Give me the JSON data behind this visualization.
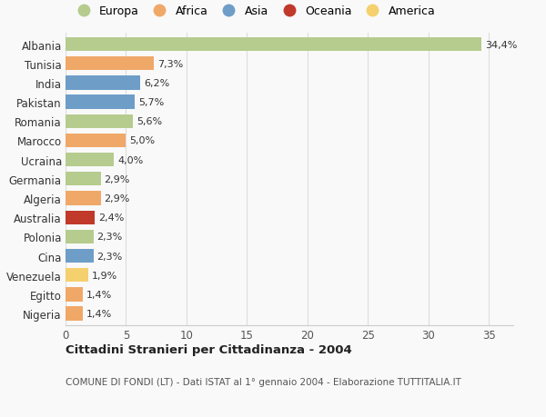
{
  "countries": [
    "Albania",
    "Tunisia",
    "India",
    "Pakistan",
    "Romania",
    "Marocco",
    "Ucraina",
    "Germania",
    "Algeria",
    "Australia",
    "Polonia",
    "Cina",
    "Venezuela",
    "Egitto",
    "Nigeria"
  ],
  "values": [
    34.4,
    7.3,
    6.2,
    5.7,
    5.6,
    5.0,
    4.0,
    2.9,
    2.9,
    2.4,
    2.3,
    2.3,
    1.9,
    1.4,
    1.4
  ],
  "labels": [
    "34,4%",
    "7,3%",
    "6,2%",
    "5,7%",
    "5,6%",
    "5,0%",
    "4,0%",
    "2,9%",
    "2,9%",
    "2,4%",
    "2,3%",
    "2,3%",
    "1,9%",
    "1,4%",
    "1,4%"
  ],
  "continents": [
    "Europa",
    "Africa",
    "Asia",
    "Asia",
    "Europa",
    "Africa",
    "Europa",
    "Europa",
    "Africa",
    "Oceania",
    "Europa",
    "Asia",
    "America",
    "Africa",
    "Africa"
  ],
  "colors": {
    "Europa": "#b5cc8e",
    "Africa": "#f0a868",
    "Asia": "#6e9dc8",
    "Oceania": "#c0392b",
    "America": "#f5d06e"
  },
  "legend_order": [
    "Europa",
    "Africa",
    "Asia",
    "Oceania",
    "America"
  ],
  "title": "Cittadini Stranieri per Cittadinanza - 2004",
  "subtitle": "COMUNE DI FONDI (LT) - Dati ISTAT al 1° gennaio 2004 - Elaborazione TUTTITALIA.IT",
  "xlim": [
    0,
    37
  ],
  "xticks": [
    0,
    5,
    10,
    15,
    20,
    25,
    30,
    35
  ],
  "background_color": "#f9f9f9",
  "bar_height": 0.72,
  "grid_color": "#dddddd"
}
